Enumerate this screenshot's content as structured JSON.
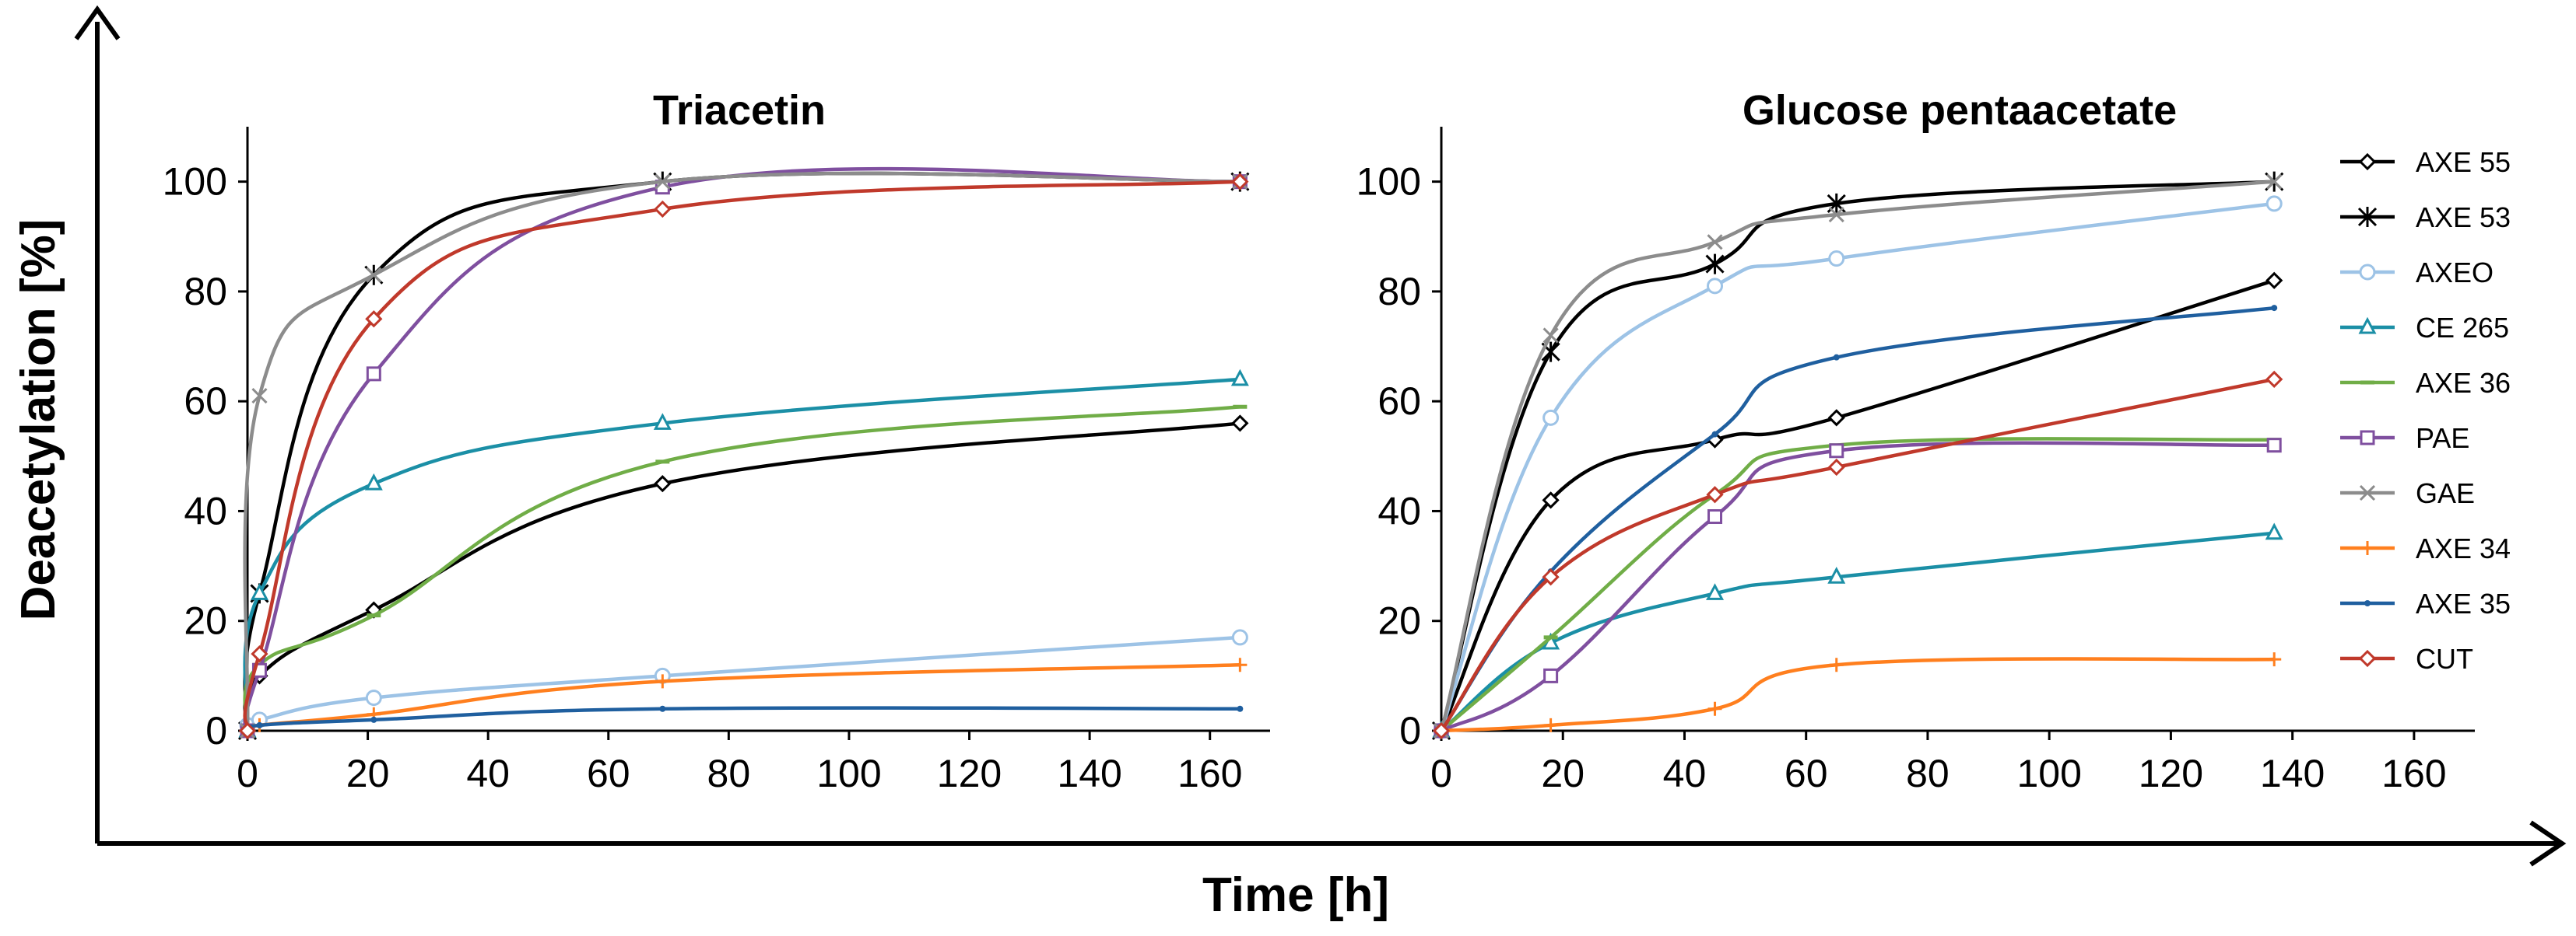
{
  "figure": {
    "x_axis_label": "Time [h]",
    "y_axis_label": "Deacetylation [%]"
  },
  "legend": [
    {
      "name": "AXE 55",
      "color": "#000000",
      "marker": "diamond"
    },
    {
      "name": "AXE 53",
      "color": "#000000",
      "marker": "star"
    },
    {
      "name": "AXEO",
      "color": "#9dc3e6",
      "marker": "circle"
    },
    {
      "name": "CE 265",
      "color": "#1b8fa6",
      "marker": "triangle"
    },
    {
      "name": "AXE 36",
      "color": "#70ad47",
      "marker": "dash"
    },
    {
      "name": "PAE",
      "color": "#7f4f9f",
      "marker": "square"
    },
    {
      "name": "GAE",
      "color": "#8c8c8c",
      "marker": "x"
    },
    {
      "name": "AXE 34",
      "color": "#ff7f1e",
      "marker": "plus"
    },
    {
      "name": "AXE 35",
      "color": "#1f5f9f",
      "marker": "dot"
    },
    {
      "name": "CUT",
      "color": "#c0392b",
      "marker": "diamond"
    }
  ],
  "chart_data": [
    {
      "type": "line",
      "title": "Triacetin",
      "xlabel": "Time [h]",
      "ylabel": "Deacetylation [%]",
      "xlim": [
        0,
        170
      ],
      "ylim": [
        0,
        110
      ],
      "xticks": [
        0,
        20,
        40,
        60,
        80,
        100,
        120,
        140,
        160
      ],
      "yticks": [
        0,
        20,
        40,
        60,
        80,
        100
      ],
      "series": [
        {
          "name": "AXE 55",
          "x": [
            0,
            2,
            21,
            69,
            165
          ],
          "y": [
            0,
            10,
            22,
            45,
            56
          ]
        },
        {
          "name": "AXE 53",
          "x": [
            0,
            2,
            21,
            69,
            165
          ],
          "y": [
            0,
            25,
            83,
            100,
            100
          ]
        },
        {
          "name": "AXEO",
          "x": [
            0,
            2,
            21,
            69,
            165
          ],
          "y": [
            1,
            2,
            6,
            10,
            17
          ]
        },
        {
          "name": "CE 265",
          "x": [
            0,
            2,
            21,
            69,
            165
          ],
          "y": [
            0,
            25,
            45,
            56,
            64
          ]
        },
        {
          "name": "AXE 36",
          "x": [
            0,
            2,
            21,
            69,
            165
          ],
          "y": [
            0,
            12,
            21,
            49,
            59
          ]
        },
        {
          "name": "PAE",
          "x": [
            0,
            2,
            21,
            69,
            165
          ],
          "y": [
            0,
            11,
            65,
            99,
            100
          ]
        },
        {
          "name": "GAE",
          "x": [
            0,
            2,
            21,
            69,
            165
          ],
          "y": [
            0,
            61,
            83,
            100,
            100
          ]
        },
        {
          "name": "AXE 34",
          "x": [
            0,
            2,
            21,
            69,
            165
          ],
          "y": [
            0,
            1,
            3,
            9,
            12
          ]
        },
        {
          "name": "AXE 35",
          "x": [
            0,
            2,
            21,
            69,
            165
          ],
          "y": [
            0,
            1,
            2,
            4,
            4
          ]
        },
        {
          "name": "CUT",
          "x": [
            0,
            2,
            21,
            69,
            165
          ],
          "y": [
            0,
            14,
            75,
            95,
            100
          ]
        }
      ]
    },
    {
      "type": "line",
      "title": "Glucose pentaacetate",
      "xlabel": "Time [h]",
      "ylabel": "Deacetylation [%]",
      "xlim": [
        0,
        170
      ],
      "ylim": [
        0,
        110
      ],
      "xticks": [
        0,
        20,
        40,
        60,
        80,
        100,
        120,
        140,
        160
      ],
      "yticks": [
        0,
        20,
        40,
        60,
        80,
        100
      ],
      "series": [
        {
          "name": "AXE 55",
          "x": [
            0,
            18,
            45,
            65,
            137
          ],
          "y": [
            0,
            42,
            53,
            57,
            82
          ]
        },
        {
          "name": "AXE 53",
          "x": [
            0,
            18,
            45,
            65,
            137
          ],
          "y": [
            0,
            69,
            85,
            96,
            100
          ]
        },
        {
          "name": "AXEO",
          "x": [
            0,
            18,
            45,
            65,
            137
          ],
          "y": [
            0,
            57,
            81,
            86,
            96
          ]
        },
        {
          "name": "CE 265",
          "x": [
            0,
            18,
            45,
            65,
            137
          ],
          "y": [
            0,
            16,
            25,
            28,
            36
          ]
        },
        {
          "name": "AXE 36",
          "x": [
            0,
            18,
            45,
            65,
            137
          ],
          "y": [
            0,
            17,
            43,
            52,
            53
          ]
        },
        {
          "name": "PAE",
          "x": [
            0,
            18,
            45,
            65,
            137
          ],
          "y": [
            0,
            10,
            39,
            51,
            52
          ]
        },
        {
          "name": "GAE",
          "x": [
            0,
            18,
            45,
            65,
            137
          ],
          "y": [
            0,
            72,
            89,
            94,
            100
          ]
        },
        {
          "name": "AXE 34",
          "x": [
            0,
            18,
            45,
            65,
            137
          ],
          "y": [
            0,
            1,
            4,
            12,
            13
          ]
        },
        {
          "name": "AXE 35",
          "x": [
            0,
            18,
            45,
            65,
            137
          ],
          "y": [
            0,
            29,
            54,
            68,
            77
          ]
        },
        {
          "name": "CUT",
          "x": [
            0,
            18,
            45,
            65,
            137
          ],
          "y": [
            0,
            28,
            43,
            48,
            64
          ]
        }
      ]
    }
  ]
}
